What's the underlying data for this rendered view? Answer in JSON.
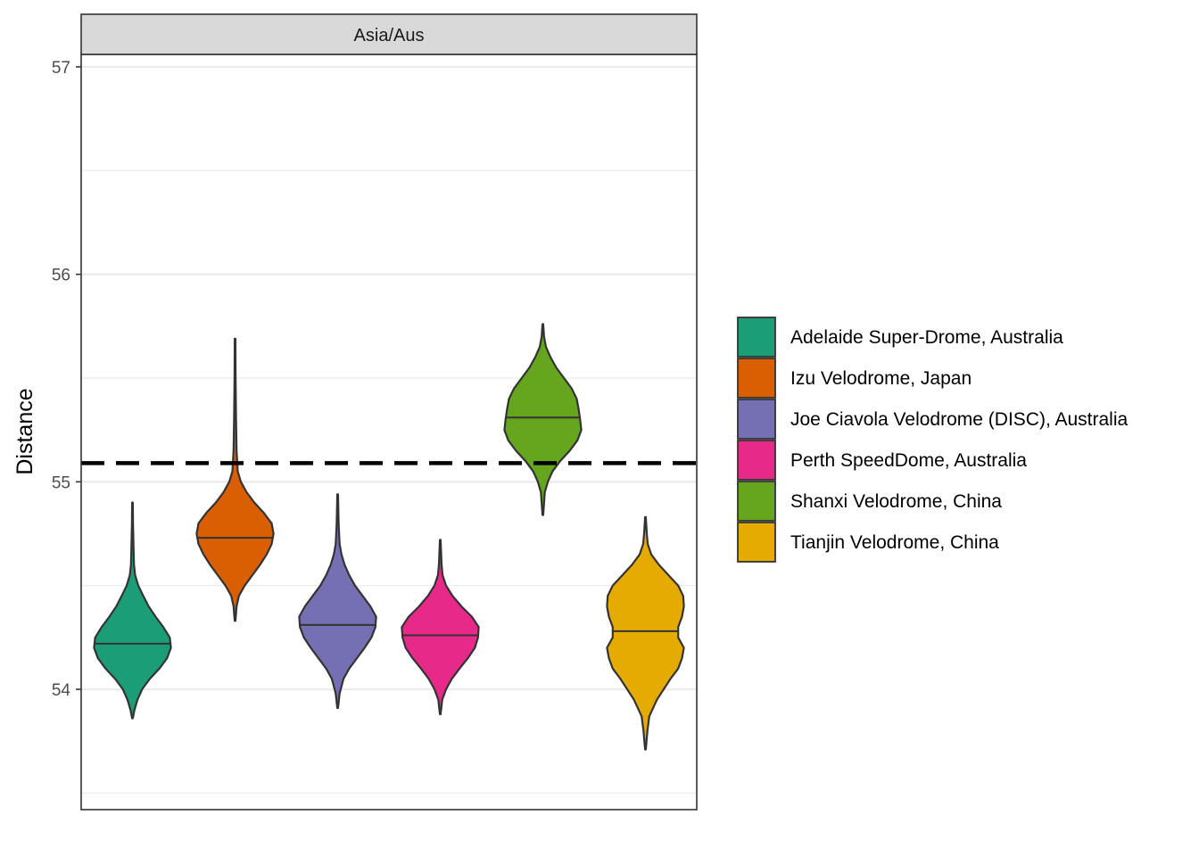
{
  "chart_data": {
    "type": "violin",
    "facet": "Asia/Aus",
    "xlabel": "",
    "ylabel": "Distance",
    "ylim": [
      53.42,
      57.06
    ],
    "yticks": [
      54,
      55,
      56,
      57
    ],
    "grid": true,
    "reference_line": {
      "y": 55.09,
      "style": "dashed",
      "color": "#000000"
    },
    "legend": {
      "position": "right",
      "title": ""
    },
    "series": [
      {
        "name": "Adelaide Super-Drome, Australia",
        "color": "#1B9E77",
        "min": 53.86,
        "max": 54.9,
        "median": 54.22,
        "profile": [
          [
            53.86,
            0.01
          ],
          [
            53.9,
            0.05
          ],
          [
            53.95,
            0.13
          ],
          [
            54.0,
            0.25
          ],
          [
            54.05,
            0.45
          ],
          [
            54.1,
            0.7
          ],
          [
            54.15,
            0.9
          ],
          [
            54.2,
            1.0
          ],
          [
            54.25,
            0.97
          ],
          [
            54.3,
            0.8
          ],
          [
            54.35,
            0.6
          ],
          [
            54.4,
            0.42
          ],
          [
            54.45,
            0.28
          ],
          [
            54.5,
            0.15
          ],
          [
            54.55,
            0.07
          ],
          [
            54.6,
            0.04
          ],
          [
            54.7,
            0.025
          ],
          [
            54.8,
            0.015
          ],
          [
            54.9,
            0.01
          ]
        ]
      },
      {
        "name": "Izu Velodrome, Japan",
        "color": "#D95F02",
        "min": 54.33,
        "max": 55.69,
        "median": 54.73,
        "profile": [
          [
            54.33,
            0.01
          ],
          [
            54.4,
            0.04
          ],
          [
            54.45,
            0.1
          ],
          [
            54.5,
            0.25
          ],
          [
            54.55,
            0.45
          ],
          [
            54.6,
            0.65
          ],
          [
            54.65,
            0.82
          ],
          [
            54.7,
            0.95
          ],
          [
            54.75,
            1.0
          ],
          [
            54.8,
            0.95
          ],
          [
            54.85,
            0.75
          ],
          [
            54.9,
            0.5
          ],
          [
            54.95,
            0.3
          ],
          [
            55.0,
            0.15
          ],
          [
            55.05,
            0.07
          ],
          [
            55.15,
            0.04
          ],
          [
            55.3,
            0.025
          ],
          [
            55.5,
            0.015
          ],
          [
            55.69,
            0.01
          ]
        ]
      },
      {
        "name": "Joe Ciavola Velodrome (DISC), Australia",
        "color": "#7570B3",
        "min": 53.91,
        "max": 54.94,
        "median": 54.31,
        "profile": [
          [
            53.91,
            0.01
          ],
          [
            53.98,
            0.05
          ],
          [
            54.05,
            0.15
          ],
          [
            54.1,
            0.3
          ],
          [
            54.15,
            0.5
          ],
          [
            54.2,
            0.7
          ],
          [
            54.25,
            0.88
          ],
          [
            54.3,
            0.98
          ],
          [
            54.35,
            1.0
          ],
          [
            54.4,
            0.85
          ],
          [
            54.45,
            0.65
          ],
          [
            54.5,
            0.45
          ],
          [
            54.55,
            0.3
          ],
          [
            54.6,
            0.18
          ],
          [
            54.65,
            0.1
          ],
          [
            54.7,
            0.05
          ],
          [
            54.8,
            0.025
          ],
          [
            54.94,
            0.01
          ]
        ]
      },
      {
        "name": "Perth SpeedDome, Australia",
        "color": "#E7298A",
        "min": 53.88,
        "max": 54.72,
        "median": 54.26,
        "profile": [
          [
            53.88,
            0.01
          ],
          [
            53.95,
            0.05
          ],
          [
            54.0,
            0.15
          ],
          [
            54.05,
            0.3
          ],
          [
            54.1,
            0.5
          ],
          [
            54.15,
            0.72
          ],
          [
            54.2,
            0.9
          ],
          [
            54.25,
            0.98
          ],
          [
            54.3,
            1.0
          ],
          [
            54.35,
            0.82
          ],
          [
            54.4,
            0.55
          ],
          [
            54.45,
            0.32
          ],
          [
            54.5,
            0.15
          ],
          [
            54.55,
            0.06
          ],
          [
            54.6,
            0.035
          ],
          [
            54.72,
            0.01
          ]
        ]
      },
      {
        "name": "Shanxi Velodrome, China",
        "color": "#66A61E",
        "min": 54.84,
        "max": 55.76,
        "median": 55.31,
        "profile": [
          [
            54.84,
            0.01
          ],
          [
            54.95,
            0.05
          ],
          [
            55.0,
            0.13
          ],
          [
            55.05,
            0.25
          ],
          [
            55.1,
            0.45
          ],
          [
            55.15,
            0.7
          ],
          [
            55.2,
            0.9
          ],
          [
            55.25,
            1.0
          ],
          [
            55.3,
            0.97
          ],
          [
            55.35,
            0.93
          ],
          [
            55.4,
            0.88
          ],
          [
            55.45,
            0.75
          ],
          [
            55.5,
            0.55
          ],
          [
            55.55,
            0.35
          ],
          [
            55.6,
            0.2
          ],
          [
            55.65,
            0.08
          ],
          [
            55.7,
            0.03
          ],
          [
            55.76,
            0.01
          ]
        ]
      },
      {
        "name": "Tianjin Velodrome, China",
        "color": "#E6AB02",
        "min": 53.71,
        "max": 54.83,
        "median": 54.28,
        "profile": [
          [
            53.71,
            0.01
          ],
          [
            53.8,
            0.05
          ],
          [
            53.87,
            0.1
          ],
          [
            53.95,
            0.3
          ],
          [
            54.05,
            0.65
          ],
          [
            54.1,
            0.85
          ],
          [
            54.15,
            0.95
          ],
          [
            54.2,
            1.0
          ],
          [
            54.25,
            0.85
          ],
          [
            54.3,
            0.85
          ],
          [
            54.35,
            0.95
          ],
          [
            54.4,
            1.0
          ],
          [
            54.45,
            0.98
          ],
          [
            54.5,
            0.85
          ],
          [
            54.55,
            0.6
          ],
          [
            54.6,
            0.35
          ],
          [
            54.65,
            0.15
          ],
          [
            54.7,
            0.06
          ],
          [
            54.75,
            0.035
          ],
          [
            54.83,
            0.01
          ]
        ]
      }
    ]
  }
}
